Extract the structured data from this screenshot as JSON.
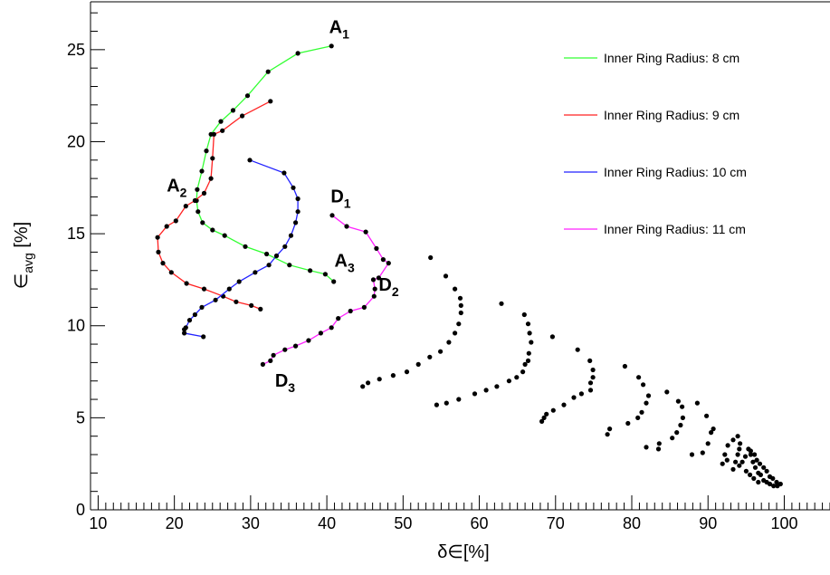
{
  "chart_data": {
    "type": "scatter",
    "title": "",
    "xlabel": "δ∈[%]",
    "ylabel_main": "∈",
    "ylabel_sub": "avg",
    "ylabel_suffix": " [%]",
    "xlim": [
      9,
      106
    ],
    "ylim": [
      0,
      27.6
    ],
    "xticks": [
      10,
      20,
      30,
      40,
      50,
      60,
      70,
      80,
      90,
      100
    ],
    "yticks": [
      0,
      5,
      10,
      15,
      20,
      25
    ],
    "x_minor_step": 1,
    "y_minor_step": 1,
    "grid": false,
    "legend_position": "top-right",
    "series": [
      {
        "name": "Inner Ring Radius: 8 cm",
        "color": "#33ff33",
        "points": [
          [
            40.6,
            25.2
          ],
          [
            36.2,
            24.8
          ],
          [
            32.3,
            23.8
          ],
          [
            29.6,
            22.5
          ],
          [
            27.7,
            21.7
          ],
          [
            26.1,
            21.1
          ],
          [
            24.8,
            20.4
          ],
          [
            24.2,
            19.5
          ],
          [
            23.6,
            18.4
          ],
          [
            23.0,
            17.4
          ],
          [
            22.9,
            16.8
          ],
          [
            23.1,
            16.2
          ],
          [
            23.7,
            15.6
          ],
          [
            25.0,
            15.2
          ],
          [
            26.6,
            14.9
          ],
          [
            29.3,
            14.3
          ],
          [
            32.1,
            13.9
          ],
          [
            35.1,
            13.3
          ],
          [
            37.8,
            13.0
          ],
          [
            39.8,
            12.8
          ],
          [
            40.9,
            12.4
          ]
        ]
      },
      {
        "name": "Inner Ring Radius: 9 cm",
        "color": "#ff2222",
        "points": [
          [
            32.6,
            22.2
          ],
          [
            28.9,
            21.4
          ],
          [
            26.3,
            20.6
          ],
          [
            25.2,
            20.4
          ],
          [
            25.0,
            19.1
          ],
          [
            24.8,
            18.0
          ],
          [
            23.9,
            17.2
          ],
          [
            22.7,
            16.8
          ],
          [
            21.5,
            16.5
          ],
          [
            20.2,
            15.7
          ],
          [
            19.0,
            15.4
          ],
          [
            17.8,
            14.8
          ],
          [
            17.9,
            14.0
          ],
          [
            18.5,
            13.4
          ],
          [
            19.6,
            12.9
          ],
          [
            21.6,
            12.3
          ],
          [
            23.9,
            12.0
          ],
          [
            26.4,
            11.6
          ],
          [
            28.1,
            11.3
          ],
          [
            30.1,
            11.1
          ],
          [
            31.3,
            10.9
          ]
        ]
      },
      {
        "name": "Inner Ring Radius: 10 cm",
        "color": "#2222ff",
        "points": [
          [
            29.9,
            19.0
          ],
          [
            34.4,
            18.3
          ],
          [
            35.6,
            17.5
          ],
          [
            36.2,
            16.9
          ],
          [
            36.2,
            16.2
          ],
          [
            35.9,
            15.6
          ],
          [
            35.3,
            14.9
          ],
          [
            34.5,
            14.3
          ],
          [
            33.4,
            13.8
          ],
          [
            32.4,
            13.3
          ],
          [
            30.6,
            12.9
          ],
          [
            28.5,
            12.4
          ],
          [
            27.2,
            12.0
          ],
          [
            25.4,
            11.4
          ],
          [
            23.6,
            11.0
          ],
          [
            22.7,
            10.6
          ],
          [
            22.0,
            10.3
          ],
          [
            21.5,
            9.9
          ],
          [
            21.3,
            9.8
          ],
          [
            21.3,
            9.6
          ],
          [
            23.8,
            9.4
          ]
        ]
      },
      {
        "name": "Inner Ring Radius: 11 cm",
        "color": "#ff22ff",
        "points": [
          [
            40.7,
            16.0
          ],
          [
            42.6,
            15.4
          ],
          [
            45.1,
            15.1
          ],
          [
            46.5,
            14.2
          ],
          [
            47.4,
            13.6
          ],
          [
            48.1,
            13.4
          ],
          [
            46.8,
            12.6
          ],
          [
            46.1,
            12.5
          ],
          [
            46.3,
            12.0
          ],
          [
            46.2,
            11.6
          ],
          [
            44.9,
            11.0
          ],
          [
            43.1,
            10.8
          ],
          [
            41.5,
            10.4
          ],
          [
            40.6,
            9.9
          ],
          [
            39.2,
            9.6
          ],
          [
            37.6,
            9.2
          ],
          [
            35.9,
            8.9
          ],
          [
            34.5,
            8.7
          ],
          [
            33.0,
            8.4
          ],
          [
            32.6,
            8.1
          ],
          [
            31.6,
            7.9
          ]
        ]
      },
      {
        "name": "",
        "color": "#000000",
        "points": [
          [
            53.6,
            13.7
          ],
          [
            55.6,
            12.7
          ],
          [
            56.8,
            12.0
          ],
          [
            57.5,
            11.5
          ],
          [
            57.6,
            11.1
          ],
          [
            57.6,
            10.7
          ],
          [
            57.3,
            10.1
          ],
          [
            56.8,
            9.6
          ],
          [
            56.0,
            9.1
          ],
          [
            54.9,
            8.6
          ],
          [
            53.5,
            8.3
          ],
          [
            52.0,
            7.9
          ],
          [
            50.5,
            7.5
          ],
          [
            48.7,
            7.3
          ],
          [
            46.9,
            7.1
          ],
          [
            45.4,
            6.9
          ],
          [
            44.7,
            6.7
          ],
          [
            62.9,
            11.2
          ],
          [
            65.9,
            10.6
          ],
          [
            66.4,
            10.1
          ],
          [
            66.6,
            9.6
          ],
          [
            66.8,
            9.1
          ],
          [
            66.5,
            8.5
          ],
          [
            66.4,
            8.1
          ],
          [
            66.0,
            7.9
          ],
          [
            65.7,
            7.5
          ],
          [
            64.9,
            7.2
          ],
          [
            63.9,
            7.0
          ],
          [
            62.3,
            6.7
          ],
          [
            60.9,
            6.5
          ],
          [
            59.4,
            6.3
          ],
          [
            57.3,
            6.0
          ],
          [
            55.7,
            5.8
          ],
          [
            54.4,
            5.7
          ],
          [
            69.6,
            9.4
          ],
          [
            72.9,
            8.7
          ],
          [
            74.5,
            8.1
          ],
          [
            74.9,
            7.6
          ],
          [
            74.9,
            7.2
          ],
          [
            74.6,
            6.9
          ],
          [
            74.6,
            6.5
          ],
          [
            73.4,
            6.3
          ],
          [
            72.4,
            6.1
          ],
          [
            71.1,
            5.7
          ],
          [
            69.7,
            5.4
          ],
          [
            68.8,
            5.2
          ],
          [
            68.5,
            5.0
          ],
          [
            68.2,
            4.8
          ],
          [
            79.1,
            7.8
          ],
          [
            80.9,
            7.2
          ],
          [
            81.5,
            6.8
          ],
          [
            82.2,
            6.2
          ],
          [
            81.9,
            5.8
          ],
          [
            81.3,
            5.3
          ],
          [
            80.8,
            5.0
          ],
          [
            79.5,
            4.7
          ],
          [
            77.1,
            4.4
          ],
          [
            76.8,
            4.1
          ],
          [
            81.9,
            3.4
          ],
          [
            84.6,
            6.4
          ],
          [
            86.1,
            5.9
          ],
          [
            86.6,
            5.6
          ],
          [
            86.7,
            5.0
          ],
          [
            86.4,
            4.6
          ],
          [
            85.9,
            4.2
          ],
          [
            85.3,
            3.9
          ],
          [
            83.6,
            3.6
          ],
          [
            83.5,
            3.3
          ],
          [
            87.9,
            3.0
          ],
          [
            89.3,
            3.1
          ],
          [
            90.0,
            3.6
          ],
          [
            90.4,
            4.2
          ],
          [
            90.7,
            4.4
          ],
          [
            89.8,
            5.1
          ],
          [
            88.6,
            5.8
          ],
          [
            93.3,
            2.2
          ],
          [
            93.6,
            2.6
          ],
          [
            93.9,
            3.0
          ],
          [
            94.1,
            3.3
          ],
          [
            94.2,
            3.6
          ],
          [
            93.9,
            4.0
          ],
          [
            93.3,
            3.8
          ],
          [
            92.6,
            3.5
          ],
          [
            92.2,
            3.0
          ],
          [
            92.5,
            2.7
          ],
          [
            91.9,
            2.5
          ],
          [
            95.3,
            3.3
          ],
          [
            95.6,
            3.0
          ],
          [
            95.9,
            2.6
          ],
          [
            96.2,
            2.3
          ],
          [
            96.6,
            2.0
          ],
          [
            96.9,
            1.9
          ],
          [
            97.3,
            1.6
          ],
          [
            97.7,
            1.5
          ],
          [
            98.1,
            1.4
          ],
          [
            98.6,
            1.3
          ],
          [
            99.1,
            1.3
          ],
          [
            99.5,
            1.4
          ],
          [
            99.0,
            1.5
          ],
          [
            98.5,
            1.7
          ],
          [
            98.1,
            1.8
          ],
          [
            97.7,
            2.1
          ],
          [
            97.3,
            2.3
          ],
          [
            96.8,
            2.5
          ],
          [
            96.4,
            2.7
          ],
          [
            96.1,
            3.0
          ],
          [
            95.6,
            3.2
          ],
          [
            94.9,
            2.9
          ],
          [
            94.5,
            2.6
          ],
          [
            94.1,
            2.4
          ],
          [
            95.0,
            2.1
          ],
          [
            95.5,
            1.9
          ],
          [
            96.0,
            1.7
          ],
          [
            96.6,
            1.5
          ]
        ]
      }
    ],
    "annotations": [
      {
        "label": "A",
        "sub": "1",
        "x": 40.3,
        "y": 25.9
      },
      {
        "label": "A",
        "sub": "2",
        "x": 19.0,
        "y": 17.3
      },
      {
        "label": "A",
        "sub": "3",
        "x": 41.0,
        "y": 13.2
      },
      {
        "label": "D",
        "sub": "1",
        "x": 40.5,
        "y": 16.7
      },
      {
        "label": "D",
        "sub": "2",
        "x": 46.8,
        "y": 11.9
      },
      {
        "label": "D",
        "sub": "3",
        "x": 33.2,
        "y": 6.7
      }
    ]
  }
}
